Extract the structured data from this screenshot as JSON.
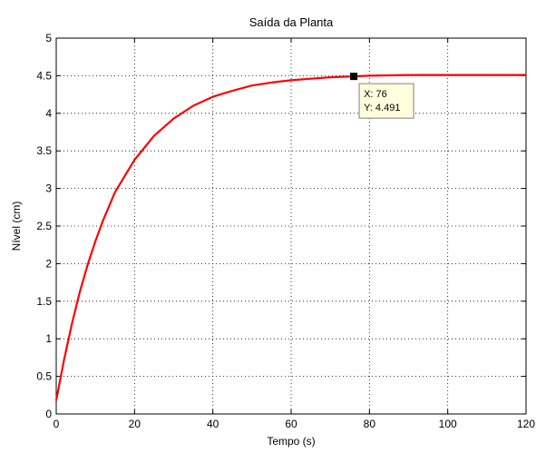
{
  "chart_data": {
    "type": "line",
    "title": "Saída da Planta",
    "xlabel": "Tempo (s)",
    "ylabel": "Nível (cm)",
    "xlim": [
      0,
      120
    ],
    "ylim": [
      0,
      5
    ],
    "xticks": [
      0,
      20,
      40,
      60,
      80,
      100,
      120
    ],
    "yticks": [
      0,
      0.5,
      1,
      1.5,
      2,
      2.5,
      3,
      3.5,
      4,
      4.5,
      5
    ],
    "xtick_labels": [
      "0",
      "20",
      "40",
      "60",
      "80",
      "100",
      "120"
    ],
    "ytick_labels": [
      "0",
      "0.5",
      "1",
      "1.5",
      "2",
      "2.5",
      "3",
      "3.5",
      "4",
      "4.5",
      "5"
    ],
    "grid": true,
    "series": [
      {
        "color": "#ff0000",
        "x": [
          0,
          2,
          4,
          6,
          8,
          10,
          12,
          15,
          20,
          25,
          30,
          35,
          40,
          45,
          50,
          55,
          60,
          65,
          70,
          76,
          80,
          90,
          100,
          110,
          120
        ],
        "y": [
          0.18,
          0.72,
          1.2,
          1.62,
          1.98,
          2.3,
          2.58,
          2.95,
          3.38,
          3.7,
          3.93,
          4.1,
          4.22,
          4.3,
          4.37,
          4.41,
          4.44,
          4.46,
          4.48,
          4.491,
          4.5,
          4.51,
          4.51,
          4.51,
          4.51
        ]
      }
    ],
    "datatip": {
      "x": 76,
      "y": 4.491,
      "label_x": "X: 76",
      "label_y": "Y: 4.491"
    }
  }
}
